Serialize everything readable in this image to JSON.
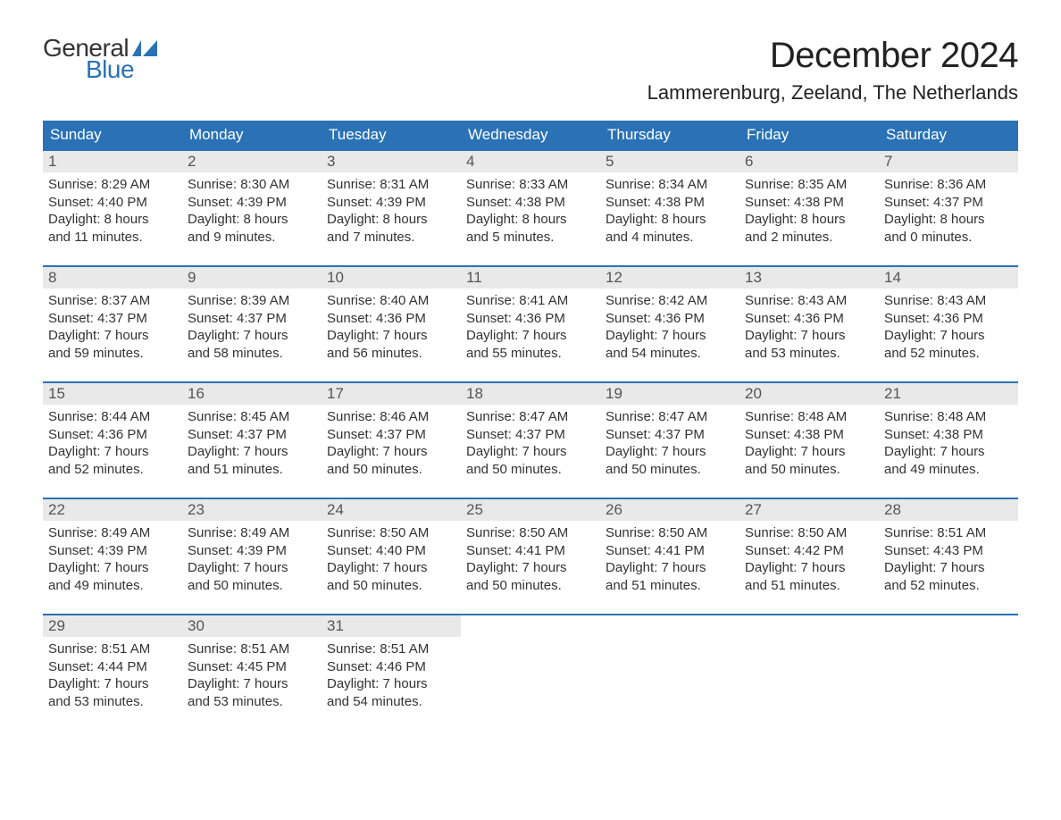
{
  "logo": {
    "text1": "General",
    "text2": "Blue",
    "flag_color": "#2a72b5"
  },
  "title": "December 2024",
  "location": "Lammerenburg, Zeeland, The Netherlands",
  "colors": {
    "header_bg": "#2a72b5",
    "header_text": "#ffffff",
    "daynum_bg": "#e9e9e9",
    "daynum_text": "#555555",
    "week_border": "#2a72b5",
    "body_bg": "#ffffff",
    "text": "#333333"
  },
  "typography": {
    "title_fontsize_pt": 30,
    "location_fontsize_pt": 16,
    "dow_fontsize_pt": 13,
    "daynum_fontsize_pt": 13,
    "body_fontsize_pt": 11
  },
  "days_of_week": [
    "Sunday",
    "Monday",
    "Tuesday",
    "Wednesday",
    "Thursday",
    "Friday",
    "Saturday"
  ],
  "weeks": [
    [
      {
        "n": "1",
        "sunrise": "Sunrise: 8:29 AM",
        "sunset": "Sunset: 4:40 PM",
        "d1": "Daylight: 8 hours",
        "d2": "and 11 minutes."
      },
      {
        "n": "2",
        "sunrise": "Sunrise: 8:30 AM",
        "sunset": "Sunset: 4:39 PM",
        "d1": "Daylight: 8 hours",
        "d2": "and 9 minutes."
      },
      {
        "n": "3",
        "sunrise": "Sunrise: 8:31 AM",
        "sunset": "Sunset: 4:39 PM",
        "d1": "Daylight: 8 hours",
        "d2": "and 7 minutes."
      },
      {
        "n": "4",
        "sunrise": "Sunrise: 8:33 AM",
        "sunset": "Sunset: 4:38 PM",
        "d1": "Daylight: 8 hours",
        "d2": "and 5 minutes."
      },
      {
        "n": "5",
        "sunrise": "Sunrise: 8:34 AM",
        "sunset": "Sunset: 4:38 PM",
        "d1": "Daylight: 8 hours",
        "d2": "and 4 minutes."
      },
      {
        "n": "6",
        "sunrise": "Sunrise: 8:35 AM",
        "sunset": "Sunset: 4:38 PM",
        "d1": "Daylight: 8 hours",
        "d2": "and 2 minutes."
      },
      {
        "n": "7",
        "sunrise": "Sunrise: 8:36 AM",
        "sunset": "Sunset: 4:37 PM",
        "d1": "Daylight: 8 hours",
        "d2": "and 0 minutes."
      }
    ],
    [
      {
        "n": "8",
        "sunrise": "Sunrise: 8:37 AM",
        "sunset": "Sunset: 4:37 PM",
        "d1": "Daylight: 7 hours",
        "d2": "and 59 minutes."
      },
      {
        "n": "9",
        "sunrise": "Sunrise: 8:39 AM",
        "sunset": "Sunset: 4:37 PM",
        "d1": "Daylight: 7 hours",
        "d2": "and 58 minutes."
      },
      {
        "n": "10",
        "sunrise": "Sunrise: 8:40 AM",
        "sunset": "Sunset: 4:36 PM",
        "d1": "Daylight: 7 hours",
        "d2": "and 56 minutes."
      },
      {
        "n": "11",
        "sunrise": "Sunrise: 8:41 AM",
        "sunset": "Sunset: 4:36 PM",
        "d1": "Daylight: 7 hours",
        "d2": "and 55 minutes."
      },
      {
        "n": "12",
        "sunrise": "Sunrise: 8:42 AM",
        "sunset": "Sunset: 4:36 PM",
        "d1": "Daylight: 7 hours",
        "d2": "and 54 minutes."
      },
      {
        "n": "13",
        "sunrise": "Sunrise: 8:43 AM",
        "sunset": "Sunset: 4:36 PM",
        "d1": "Daylight: 7 hours",
        "d2": "and 53 minutes."
      },
      {
        "n": "14",
        "sunrise": "Sunrise: 8:43 AM",
        "sunset": "Sunset: 4:36 PM",
        "d1": "Daylight: 7 hours",
        "d2": "and 52 minutes."
      }
    ],
    [
      {
        "n": "15",
        "sunrise": "Sunrise: 8:44 AM",
        "sunset": "Sunset: 4:36 PM",
        "d1": "Daylight: 7 hours",
        "d2": "and 52 minutes."
      },
      {
        "n": "16",
        "sunrise": "Sunrise: 8:45 AM",
        "sunset": "Sunset: 4:37 PM",
        "d1": "Daylight: 7 hours",
        "d2": "and 51 minutes."
      },
      {
        "n": "17",
        "sunrise": "Sunrise: 8:46 AM",
        "sunset": "Sunset: 4:37 PM",
        "d1": "Daylight: 7 hours",
        "d2": "and 50 minutes."
      },
      {
        "n": "18",
        "sunrise": "Sunrise: 8:47 AM",
        "sunset": "Sunset: 4:37 PM",
        "d1": "Daylight: 7 hours",
        "d2": "and 50 minutes."
      },
      {
        "n": "19",
        "sunrise": "Sunrise: 8:47 AM",
        "sunset": "Sunset: 4:37 PM",
        "d1": "Daylight: 7 hours",
        "d2": "and 50 minutes."
      },
      {
        "n": "20",
        "sunrise": "Sunrise: 8:48 AM",
        "sunset": "Sunset: 4:38 PM",
        "d1": "Daylight: 7 hours",
        "d2": "and 50 minutes."
      },
      {
        "n": "21",
        "sunrise": "Sunrise: 8:48 AM",
        "sunset": "Sunset: 4:38 PM",
        "d1": "Daylight: 7 hours",
        "d2": "and 49 minutes."
      }
    ],
    [
      {
        "n": "22",
        "sunrise": "Sunrise: 8:49 AM",
        "sunset": "Sunset: 4:39 PM",
        "d1": "Daylight: 7 hours",
        "d2": "and 49 minutes."
      },
      {
        "n": "23",
        "sunrise": "Sunrise: 8:49 AM",
        "sunset": "Sunset: 4:39 PM",
        "d1": "Daylight: 7 hours",
        "d2": "and 50 minutes."
      },
      {
        "n": "24",
        "sunrise": "Sunrise: 8:50 AM",
        "sunset": "Sunset: 4:40 PM",
        "d1": "Daylight: 7 hours",
        "d2": "and 50 minutes."
      },
      {
        "n": "25",
        "sunrise": "Sunrise: 8:50 AM",
        "sunset": "Sunset: 4:41 PM",
        "d1": "Daylight: 7 hours",
        "d2": "and 50 minutes."
      },
      {
        "n": "26",
        "sunrise": "Sunrise: 8:50 AM",
        "sunset": "Sunset: 4:41 PM",
        "d1": "Daylight: 7 hours",
        "d2": "and 51 minutes."
      },
      {
        "n": "27",
        "sunrise": "Sunrise: 8:50 AM",
        "sunset": "Sunset: 4:42 PM",
        "d1": "Daylight: 7 hours",
        "d2": "and 51 minutes."
      },
      {
        "n": "28",
        "sunrise": "Sunrise: 8:51 AM",
        "sunset": "Sunset: 4:43 PM",
        "d1": "Daylight: 7 hours",
        "d2": "and 52 minutes."
      }
    ],
    [
      {
        "n": "29",
        "sunrise": "Sunrise: 8:51 AM",
        "sunset": "Sunset: 4:44 PM",
        "d1": "Daylight: 7 hours",
        "d2": "and 53 minutes."
      },
      {
        "n": "30",
        "sunrise": "Sunrise: 8:51 AM",
        "sunset": "Sunset: 4:45 PM",
        "d1": "Daylight: 7 hours",
        "d2": "and 53 minutes."
      },
      {
        "n": "31",
        "sunrise": "Sunrise: 8:51 AM",
        "sunset": "Sunset: 4:46 PM",
        "d1": "Daylight: 7 hours",
        "d2": "and 54 minutes."
      },
      {
        "empty": true
      },
      {
        "empty": true
      },
      {
        "empty": true
      },
      {
        "empty": true
      }
    ]
  ]
}
